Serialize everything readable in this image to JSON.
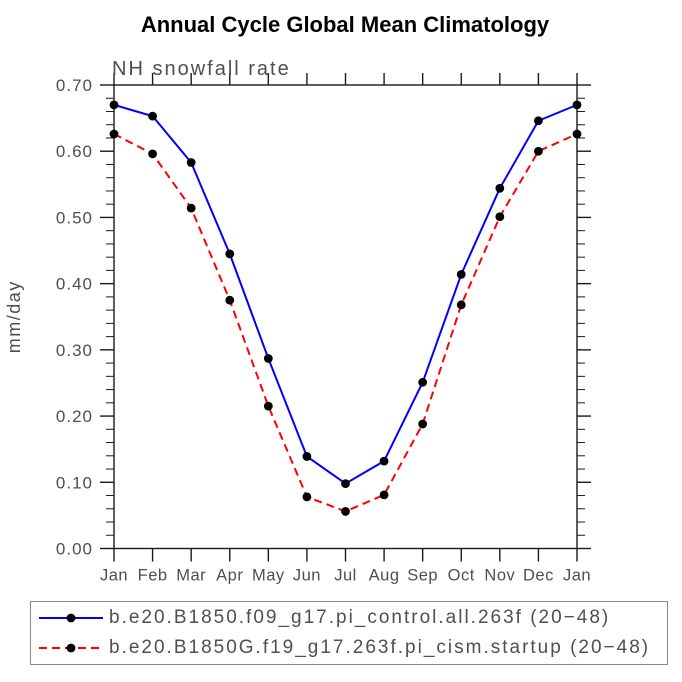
{
  "page": {
    "background_color": "#ffffff"
  },
  "chart_data": {
    "type": "line",
    "title": "Annual Cycle Global Mean Climatology",
    "subtitle": "NH snowfall rate",
    "ylabel": "mm/day",
    "x_categories": [
      "Jan",
      "Feb",
      "Mar",
      "Apr",
      "May",
      "Jun",
      "Jul",
      "Aug",
      "Sep",
      "Oct",
      "Nov",
      "Dec",
      "Jan"
    ],
    "ylim": [
      0.0,
      0.7
    ],
    "ytick_step": 0.1,
    "yminor_step": 0.02,
    "ytick_format_decimals": 2,
    "grid": false,
    "legend_position": "bottom",
    "series": [
      {
        "name": "b.e20.B1850.f09_g17.pi_control.all.263f (20−48)",
        "color": "#0000ff",
        "line_style": "solid",
        "marker": "filled-circle",
        "marker_color": "#000000",
        "values": [
          0.67,
          0.653,
          0.583,
          0.445,
          0.287,
          0.139,
          0.098,
          0.132,
          0.251,
          0.414,
          0.544,
          0.646,
          0.67
        ]
      },
      {
        "name": "b.e20.B1850G.f19_g17.263f.pi_cism.startup (20−48)",
        "color": "#ff0000",
        "line_style": "dashed",
        "marker": "filled-circle",
        "marker_color": "#000000",
        "values": [
          0.626,
          0.596,
          0.514,
          0.375,
          0.215,
          0.078,
          0.056,
          0.081,
          0.188,
          0.368,
          0.501,
          0.6,
          0.626
        ]
      }
    ]
  },
  "colors": {
    "axis": "#1a1a1a",
    "label_text": "#4f4f4f",
    "legend_border": "#8a8a8a",
    "marker": "#000000"
  }
}
